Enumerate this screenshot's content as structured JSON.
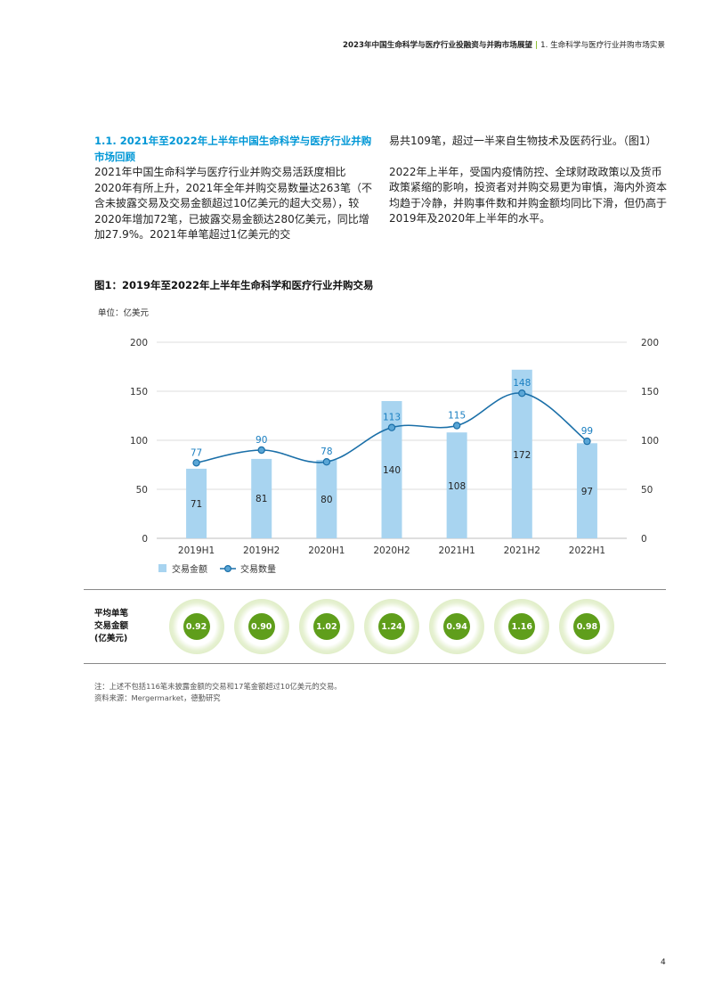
{
  "header": {
    "report_title": "2023年中国生命科学与医疗行业投融资与并购市场展望",
    "separator": "|",
    "section_title": "1. 生命科学与医疗行业并购市场实景"
  },
  "section": {
    "heading": "1.1. 2021年至2022年上半年中国生命科学与医疗行业并购市场回顾",
    "left_paragraph": "2021年中国生命科学与医疗行业并购交易活跃度相比2020年有所上升，2021年全年并购交易数量达263笔（不含未披露交易及交易金额超过10亿美元的超大交易），较2020年增加72笔，已披露交易金额达280亿美元，同比增加27.9%。2021年单笔超过1亿美元的交",
    "right_paragraph_1": "易共109笔，超过一半来自生物技术及医药行业。（图1）",
    "right_paragraph_2": "2022年上半年，受国内疫情防控、全球财政政策以及货币政策紧缩的影响，投资者对并购交易更为审慎，海内外资本均趋于冷静，并购事件数和并购金额均同比下滑，但仍高于2019年及2020年上半年的水平。"
  },
  "figure": {
    "title": "图1：2019年至2022年上半年生命科学和医疗行业并购交易",
    "unit": "单位：亿美元"
  },
  "chart_data": {
    "type": "bar",
    "title": "图1：2019年至2022年上半年生命科学和医疗行业并购交易",
    "categories": [
      "2019H1",
      "2019H2",
      "2020H1",
      "2020H2",
      "2021H1",
      "2021H2",
      "2022H1"
    ],
    "series": [
      {
        "name": "交易金额",
        "type": "bar",
        "axis": "left",
        "color": "#a8d4f0",
        "values": [
          71,
          81,
          80,
          140,
          108,
          172,
          97
        ]
      },
      {
        "name": "交易数量",
        "type": "line",
        "axis": "right",
        "color": "#1a6fa8",
        "label_color": "#1a7fc1",
        "values": [
          77,
          90,
          78,
          113,
          115,
          148,
          99
        ]
      }
    ],
    "ylim": [
      0,
      200
    ],
    "y2lim": [
      0,
      200
    ],
    "yticks": [
      0,
      50,
      100,
      150,
      200
    ],
    "y2ticks": [
      0,
      50,
      100,
      150,
      200
    ],
    "legend_position": "bottom-left",
    "grid": true
  },
  "avg_panel": {
    "label_lines": [
      "平均单笔",
      "交易金额",
      "(亿美元)"
    ],
    "values": [
      "0.92",
      "0.90",
      "1.02",
      "1.24",
      "0.94",
      "1.16",
      "0.98"
    ]
  },
  "notes": {
    "note": "注：上述不包括116笔未披露金额的交易和17笔金额超过10亿美元的交易。",
    "source": "资料来源：Mergermarket，德勤研究"
  },
  "page_number": "4"
}
